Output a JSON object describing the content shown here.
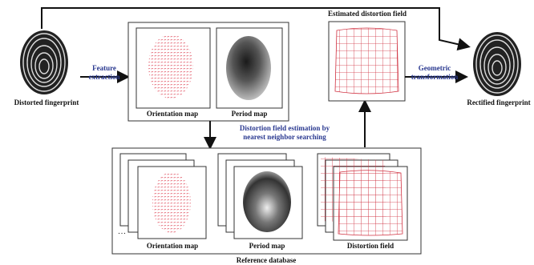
{
  "diagram": {
    "input": {
      "label": "Distorted fingerprint"
    },
    "feature_step": {
      "lines": [
        "Feature",
        "extraction"
      ]
    },
    "feature_box": {
      "orientation": "Orientation map",
      "period": "Period map"
    },
    "estimation_step": {
      "lines": [
        "Distortion field estimation by",
        "nearest neighbor searching"
      ]
    },
    "estimated_field": {
      "label": "Estimated distortion field"
    },
    "transform_step": {
      "lines": [
        "Geometric",
        "transformation"
      ]
    },
    "output": {
      "label": "Rectified fingerprint"
    },
    "database": {
      "orientation": "Orientation map",
      "period": "Period map",
      "distortion": "Distortion field",
      "label": "Reference database"
    }
  }
}
